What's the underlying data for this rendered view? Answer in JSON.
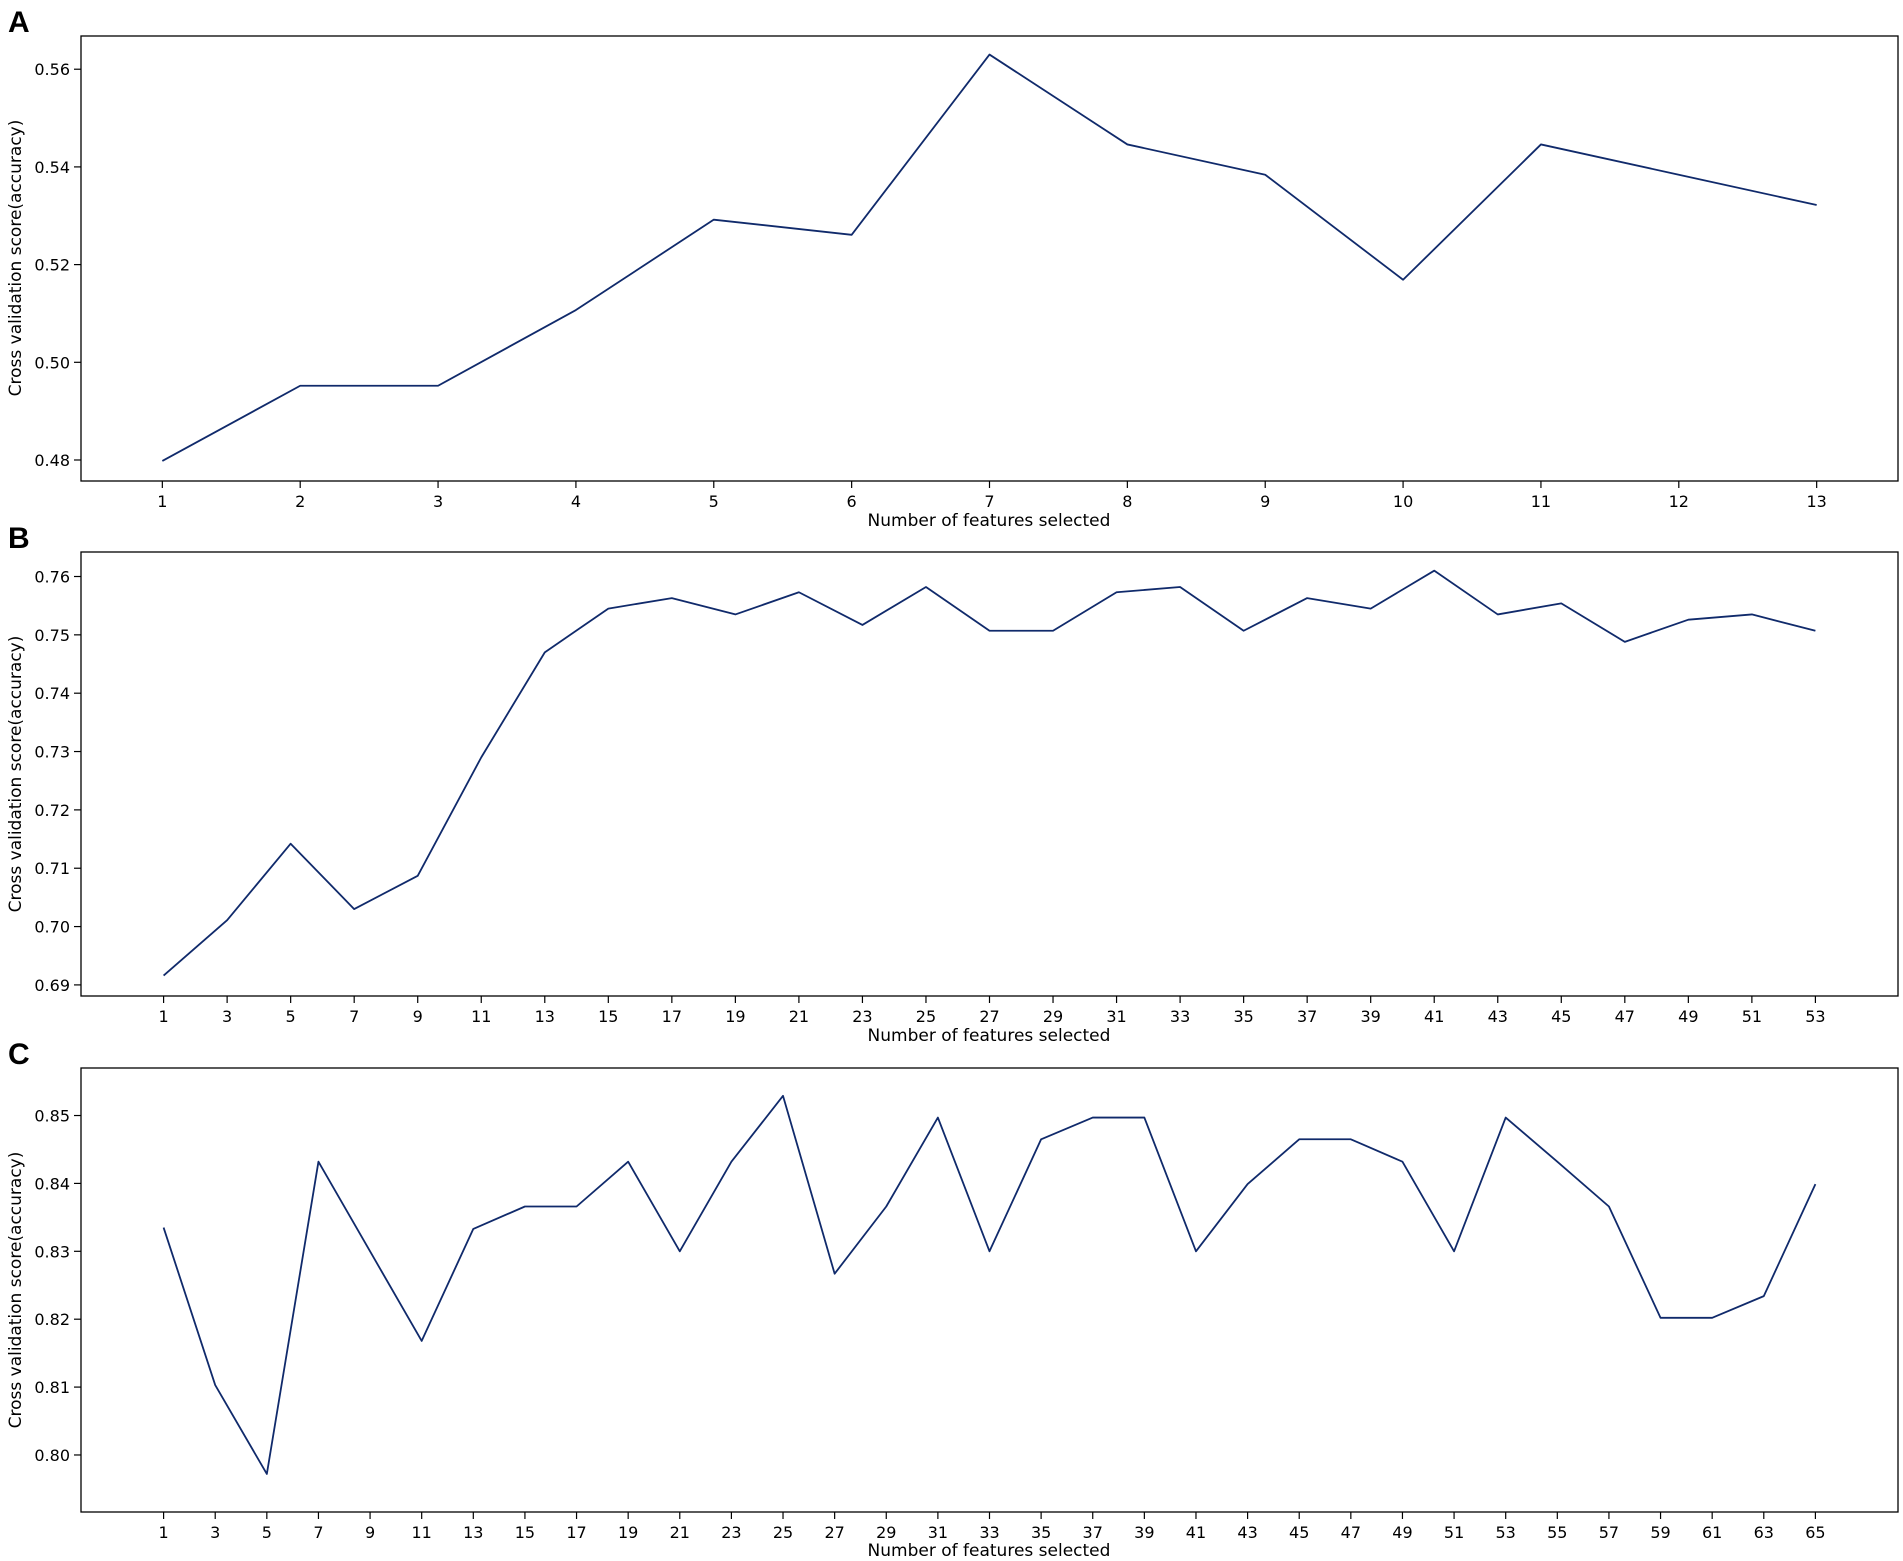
{
  "colors": {
    "line": "#102a6b",
    "axes": "#000000",
    "background": "#ffffff"
  },
  "chart_data": [
    {
      "type": "line",
      "panel": "A",
      "title": "",
      "xlabel": "Number of features selected",
      "ylabel": "Cross validation score(accuracy)",
      "x": [
        1,
        2,
        3,
        4,
        5,
        6,
        7,
        8,
        9,
        10,
        11,
        12,
        13
      ],
      "y": [
        0.4798,
        0.4952,
        0.4952,
        0.5107,
        0.5292,
        0.5261,
        0.563,
        0.5446,
        0.5384,
        0.5169,
        0.5446,
        0.5384,
        0.5322
      ],
      "xticks": [
        1,
        2,
        3,
        4,
        5,
        6,
        7,
        8,
        9,
        10,
        11,
        12,
        13
      ],
      "yticks": [
        0.48,
        0.5,
        0.52,
        0.54,
        0.56
      ],
      "ytick_labels": [
        "0.48",
        "0.50",
        "0.52",
        "0.54",
        "0.56"
      ],
      "xlim": [
        0.41,
        13.59
      ],
      "ylim": [
        0.4757,
        0.5668
      ],
      "grid": false
    },
    {
      "type": "line",
      "panel": "B",
      "title": "",
      "xlabel": "Number of features selected",
      "ylabel": "Cross validation score(accuracy)",
      "x": [
        1,
        3,
        5,
        7,
        9,
        11,
        13,
        15,
        17,
        19,
        21,
        23,
        25,
        27,
        29,
        31,
        33,
        35,
        37,
        39,
        41,
        43,
        45,
        47,
        49,
        51,
        53
      ],
      "y": [
        0.6916,
        0.7011,
        0.7142,
        0.703,
        0.7087,
        0.729,
        0.747,
        0.7545,
        0.7563,
        0.7535,
        0.7573,
        0.7517,
        0.7582,
        0.7507,
        0.7507,
        0.7573,
        0.7582,
        0.7507,
        0.7563,
        0.7545,
        0.761,
        0.7535,
        0.7554,
        0.7488,
        0.7526,
        0.7535,
        0.7507
      ],
      "xticks": [
        1,
        3,
        5,
        7,
        9,
        11,
        13,
        15,
        17,
        19,
        21,
        23,
        25,
        27,
        29,
        31,
        33,
        35,
        37,
        39,
        41,
        43,
        45,
        47,
        49,
        51,
        53
      ],
      "yticks": [
        0.69,
        0.7,
        0.71,
        0.72,
        0.73,
        0.74,
        0.75,
        0.76
      ],
      "ytick_labels": [
        "0.69",
        "0.70",
        "0.71",
        "0.72",
        "0.73",
        "0.74",
        "0.75",
        "0.76"
      ],
      "xlim": [
        -1.6,
        55.6
      ],
      "ylim": [
        0.6881,
        0.7642
      ],
      "grid": false
    },
    {
      "type": "line",
      "panel": "C",
      "title": "",
      "xlabel": "Number of features selected",
      "ylabel": "Cross validation score(accuracy)",
      "x": [
        1,
        3,
        5,
        7,
        9,
        11,
        13,
        15,
        17,
        19,
        21,
        23,
        25,
        27,
        29,
        31,
        33,
        35,
        37,
        39,
        41,
        43,
        45,
        47,
        49,
        51,
        53,
        55,
        57,
        59,
        61,
        63,
        65
      ],
      "y": [
        0.8335,
        0.8103,
        0.7972,
        0.8432,
        0.83,
        0.8168,
        0.8333,
        0.8366,
        0.8366,
        0.8432,
        0.83,
        0.8432,
        0.8529,
        0.8267,
        0.8366,
        0.8497,
        0.83,
        0.8465,
        0.8497,
        0.8497,
        0.83,
        0.8399,
        0.8465,
        0.8465,
        0.8432,
        0.83,
        0.8497,
        0.8432,
        0.8366,
        0.8202,
        0.8202,
        0.8234,
        0.8399
      ],
      "xticks": [
        1,
        3,
        5,
        7,
        9,
        11,
        13,
        15,
        17,
        19,
        21,
        23,
        25,
        27,
        29,
        31,
        33,
        35,
        37,
        39,
        41,
        43,
        45,
        47,
        49,
        51,
        53,
        55,
        57,
        59,
        61,
        63,
        65
      ],
      "yticks": [
        0.8,
        0.81,
        0.82,
        0.83,
        0.84,
        0.85
      ],
      "ytick_labels": [
        "0.80",
        "0.81",
        "0.82",
        "0.83",
        "0.84",
        "0.85"
      ],
      "xlim": [
        -2.2,
        68.2
      ],
      "ylim": [
        0.7916,
        0.857
      ],
      "grid": false
    }
  ]
}
